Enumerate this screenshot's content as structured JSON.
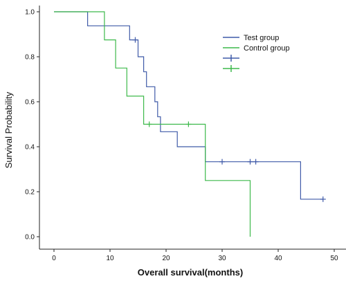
{
  "chart_data": {
    "type": "line",
    "step": true,
    "xlabel": "Overall survival(months)",
    "ylabel": "Survival Probability",
    "xlim": [
      0,
      50
    ],
    "ylim": [
      0,
      1.0
    ],
    "x_ticks": [
      0,
      10,
      20,
      30,
      40,
      50
    ],
    "y_ticks": [
      0.0,
      0.2,
      0.4,
      0.6,
      0.8,
      1.0
    ],
    "x_tick_labels": [
      "0",
      "10",
      "20",
      "30",
      "40",
      "50"
    ],
    "y_tick_labels": [
      "0.0",
      "0.2",
      "0.4",
      "0.6",
      "0.8",
      "1.0"
    ],
    "grid": false,
    "legend_position": "top-right",
    "legend": [
      {
        "label": "Test group",
        "color": "#3F5AA8",
        "symbol": "line"
      },
      {
        "label": "Control group",
        "color": "#3CB94A",
        "symbol": "line"
      },
      {
        "label": "",
        "color": "#3F5AA8",
        "symbol": "censor"
      },
      {
        "label": "",
        "color": "#3CB94A",
        "symbol": "censor"
      }
    ],
    "series": [
      {
        "name": "Test group",
        "color": "#3F5AA8",
        "points": [
          [
            0,
            1.0
          ],
          [
            6,
            1.0
          ],
          [
            6,
            0.9375
          ],
          [
            13.5,
            0.9375
          ],
          [
            13.5,
            0.875
          ],
          [
            15,
            0.875
          ],
          [
            15,
            0.8
          ],
          [
            16,
            0.8
          ],
          [
            16,
            0.7333
          ],
          [
            16.5,
            0.7333
          ],
          [
            16.5,
            0.6667
          ],
          [
            18,
            0.6667
          ],
          [
            18,
            0.6
          ],
          [
            18.5,
            0.6
          ],
          [
            18.5,
            0.5333
          ],
          [
            19,
            0.5333
          ],
          [
            19,
            0.4667
          ],
          [
            22,
            0.4667
          ],
          [
            22,
            0.4
          ],
          [
            27,
            0.4
          ],
          [
            27,
            0.3333
          ],
          [
            44,
            0.3333
          ],
          [
            44,
            0.1667
          ],
          [
            48,
            0.1667
          ]
        ],
        "censored": [
          [
            14.5,
            0.875
          ],
          [
            30,
            0.3333
          ],
          [
            35,
            0.3333
          ],
          [
            36,
            0.3333
          ],
          [
            48,
            0.1667
          ]
        ]
      },
      {
        "name": "Control group",
        "color": "#3CB94A",
        "points": [
          [
            0,
            1.0
          ],
          [
            9,
            1.0
          ],
          [
            9,
            0.875
          ],
          [
            11,
            0.875
          ],
          [
            11,
            0.75
          ],
          [
            13,
            0.75
          ],
          [
            13,
            0.625
          ],
          [
            16,
            0.625
          ],
          [
            16,
            0.5
          ],
          [
            27,
            0.5
          ],
          [
            27,
            0.25
          ],
          [
            35,
            0.25
          ],
          [
            35,
            0.0
          ]
        ],
        "censored": [
          [
            17,
            0.5
          ],
          [
            24,
            0.5
          ]
        ]
      }
    ]
  }
}
